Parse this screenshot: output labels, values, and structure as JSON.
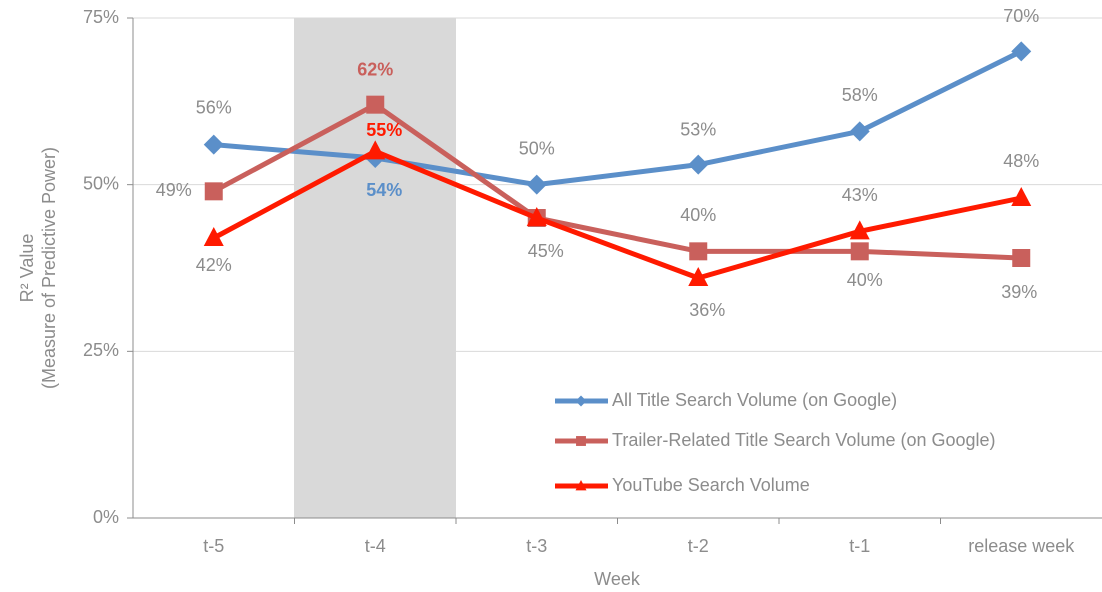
{
  "chart_data": {
    "type": "line",
    "xlabel": "Week",
    "ylabel": [
      "R² Value",
      "(Measure of Predictive Power)"
    ],
    "categories": [
      "t-5",
      "t-4",
      "t-3",
      "t-2",
      "t-1",
      "release week"
    ],
    "ylim": [
      0,
      75
    ],
    "yticks": [
      {
        "value": 0,
        "label": "0%"
      },
      {
        "value": 25,
        "label": "25%"
      },
      {
        "value": 50,
        "label": "50%"
      },
      {
        "value": 75,
        "label": "75%"
      }
    ],
    "grid": true,
    "series": [
      {
        "name": "All Title Search Volume (on Google)",
        "color": "#5b8fc9",
        "marker": "diamond",
        "values": [
          56,
          54,
          50,
          53,
          58,
          70
        ],
        "value_labels": [
          "56%",
          "54%",
          "50%",
          "53%",
          "58%",
          "70%"
        ]
      },
      {
        "name": "Trailer-Related Title Search Volume (on Google)",
        "color": "#c9605c",
        "marker": "square",
        "values": [
          49,
          62,
          45,
          40,
          40,
          39
        ],
        "value_labels": [
          "49%",
          "62%",
          "45%",
          "40%",
          "40%",
          "39%"
        ]
      },
      {
        "name": "YouTube Search Volume",
        "color": "#ff1a00",
        "marker": "triangle",
        "values": [
          42,
          55,
          45,
          36,
          43,
          48
        ],
        "value_labels": [
          "42%",
          "55%",
          null,
          "36%",
          "43%",
          "48%"
        ]
      }
    ]
  }
}
